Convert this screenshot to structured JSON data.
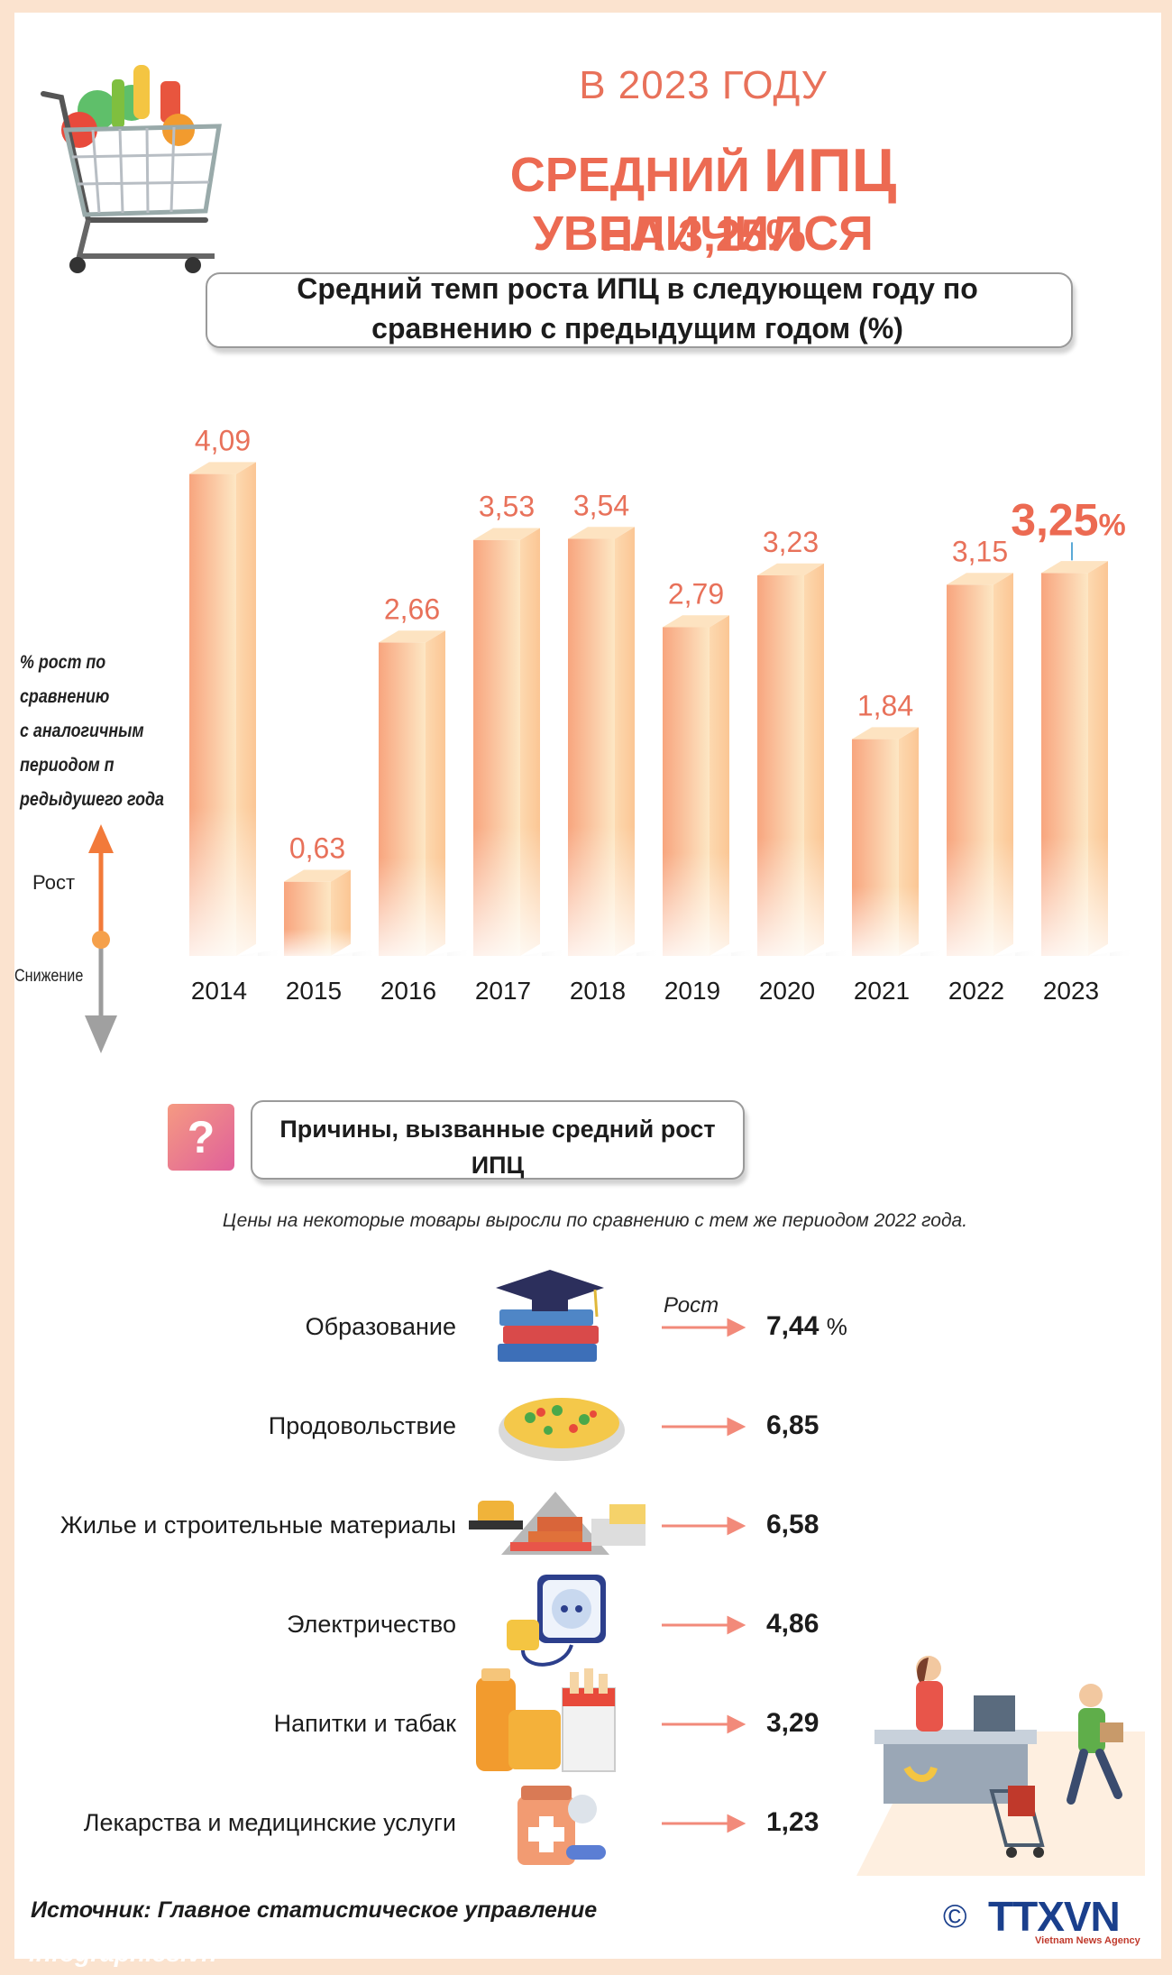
{
  "header": {
    "year_line": "В 2023 ГОДУ",
    "main_prefix": "СРЕДНИЙ ",
    "main_big": "ИПЦ",
    "main_suffix": " УВЕЛИЧИЛСЯ",
    "sub_line": "НА 3,25%"
  },
  "chart_data": {
    "type": "bar",
    "title": "Средний темп роста ИПЦ в следующем году по сравнению с предыдущим годом (%)",
    "categories": [
      "2014",
      "2015",
      "2016",
      "2017",
      "2018",
      "2019",
      "2020",
      "2021",
      "2022",
      "2023"
    ],
    "values": [
      4.09,
      0.63,
      2.66,
      3.53,
      3.54,
      2.79,
      3.23,
      1.84,
      3.15,
      3.25
    ],
    "value_labels": [
      "4,09",
      "0,63",
      "2,66",
      "3,53",
      "3,54",
      "2,79",
      "3,23",
      "1,84",
      "3,15",
      "3,25"
    ],
    "highlight_label": "3,25",
    "highlight_unit": "%",
    "ylabel": "% рост по сравнению с аналогичным периодом п редыдушего года",
    "ylim": [
      0,
      4.2
    ],
    "grid": false,
    "colors": {
      "bar_light": "#fde9c8",
      "bar_dark": "#f79f78",
      "label": "#e8715a"
    }
  },
  "axis": {
    "caption_lines": [
      "% рост по сравнению",
      "с аналогичным",
      "периодом п",
      "редыдушего года"
    ],
    "up_label": "Рост",
    "down_label": "Снижение"
  },
  "reasons": {
    "icon_label": "?",
    "title": "Причины, вызванные средний рост ИПЦ",
    "note": "Цены на некоторые товары выросли по сравнению с тем же периодом 2022 года.",
    "rost_label": "Рост",
    "items": [
      {
        "name": "Образование",
        "value": "7,44",
        "unit": "%",
        "icon": "education-books-icon"
      },
      {
        "name": "Продовольствие",
        "value": "6,85",
        "unit": "",
        "icon": "food-bowl-icon"
      },
      {
        "name": "Жилье и строительные материалы",
        "value": "6,58",
        "unit": "",
        "icon": "construction-materials-icon"
      },
      {
        "name": "Электричество",
        "value": "4,86",
        "unit": "",
        "icon": "power-socket-icon"
      },
      {
        "name": "Напитки и табак",
        "value": "3,29",
        "unit": "",
        "icon": "drinks-tobacco-icon"
      },
      {
        "name": "Лекарства и медицинские услуги",
        "value": "1,23",
        "unit": "",
        "icon": "medicine-icon"
      }
    ]
  },
  "footer": {
    "source": "Источник: Главное статистическое управление",
    "site": "infographics.vn",
    "copyright_symbol": "©",
    "logo": "TTXVN",
    "logo_sub": "Vietnam News Agency"
  }
}
